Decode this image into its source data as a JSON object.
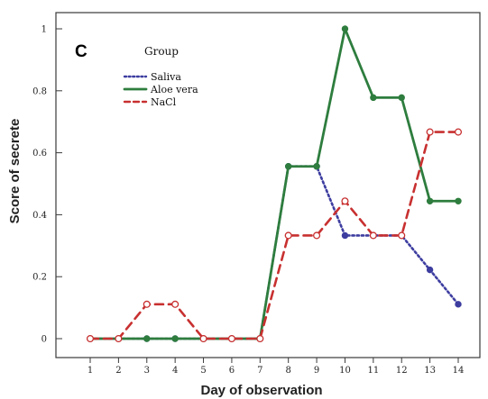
{
  "chart_data": {
    "type": "line",
    "panel_label": "C",
    "xlabel": "Day of observation",
    "ylabel": "Score of secrete",
    "x": [
      1,
      2,
      3,
      4,
      5,
      6,
      7,
      8,
      9,
      10,
      11,
      12,
      13,
      14
    ],
    "x_tick_labels": [
      "1",
      "2",
      "3",
      "4",
      "5",
      "6",
      "7",
      "8",
      "9",
      "10",
      "11",
      "12",
      "13",
      "14"
    ],
    "xlim": [
      0,
      15
    ],
    "ylim": [
      0,
      1.1
    ],
    "y_ticks": [
      0,
      0.2,
      0.4,
      0.6,
      0.8,
      1
    ],
    "y_tick_labels": [
      "0",
      "0.2",
      "0.4",
      "0.6",
      "0.8",
      "1"
    ],
    "grid": false,
    "legend": {
      "title": "Group",
      "placement": "top-left"
    },
    "series": [
      {
        "name": "Saliva",
        "color": "#3d3da0",
        "line_style": "dotted",
        "marker": "filled-circle",
        "values": [
          0,
          0,
          0,
          0,
          0,
          0,
          0,
          0.556,
          0.556,
          0.333,
          0.333,
          0.333,
          0.222,
          0.111
        ]
      },
      {
        "name": "Aloe vera",
        "color": "#2e7d3e",
        "line_style": "solid",
        "marker": "filled-circle",
        "values": [
          0,
          0,
          0,
          0,
          0,
          0,
          0,
          0.556,
          0.556,
          1.0,
          0.778,
          0.778,
          0.444,
          0.444
        ]
      },
      {
        "name": "NaCl",
        "color": "#c83030",
        "line_style": "dashed",
        "marker": "open-circle",
        "values": [
          0,
          0,
          0.111,
          0.111,
          0,
          0,
          0,
          0.333,
          0.333,
          0.444,
          0.333,
          0.333,
          0.667,
          0.667
        ]
      }
    ]
  }
}
